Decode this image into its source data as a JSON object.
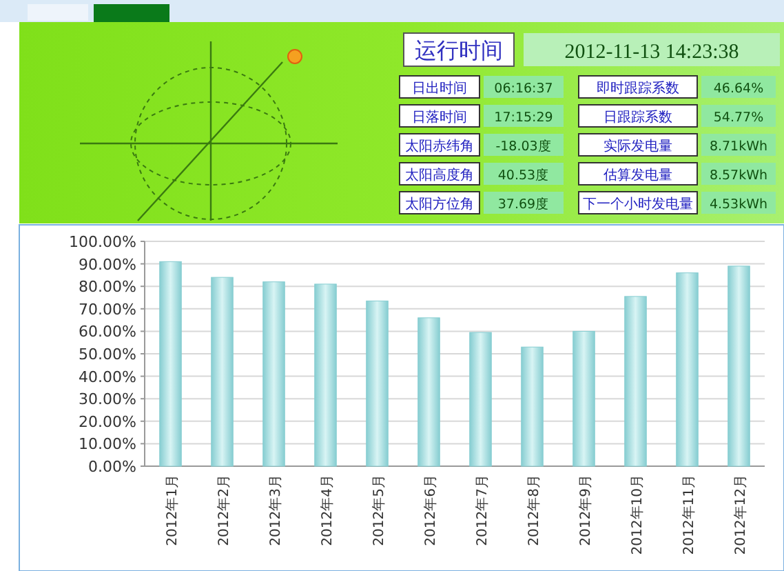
{
  "chart_data": {
    "type": "bar",
    "categories": [
      "2012年1月",
      "2012年2月",
      "2012年3月",
      "2012年4月",
      "2012年5月",
      "2012年6月",
      "2012年7月",
      "2012年8月",
      "2012年9月",
      "2012年10月",
      "2012年11月",
      "2012年12月"
    ],
    "values": [
      91,
      84,
      82,
      81,
      73.5,
      66,
      59.5,
      53,
      60,
      75.5,
      86,
      89
    ],
    "color": "#86cdd1",
    "ylim": [
      0,
      100
    ],
    "yticks": [
      {
        "value": 0,
        "label": "0.00%"
      },
      {
        "value": 10,
        "label": "10.00%"
      },
      {
        "value": 20,
        "label": "20.00%"
      },
      {
        "value": 30,
        "label": "30.00%"
      },
      {
        "value": 40,
        "label": "40.00%"
      },
      {
        "value": 50,
        "label": "50.00%"
      },
      {
        "value": 60,
        "label": "60.00%"
      },
      {
        "value": 70,
        "label": "70.00%"
      },
      {
        "value": 80,
        "label": "80.00%"
      },
      {
        "value": 90,
        "label": "90.00%"
      },
      {
        "value": 100,
        "label": "100.00%"
      }
    ],
    "grid": "y",
    "annotations": [
      "运行时间",
      "2012-11-13 14:23:38",
      "日出时间",
      "06:16:37",
      "即时跟踪系数",
      "46.64%",
      "日落时间",
      "17:15:29",
      "日跟踪系数",
      "54.77%",
      "太阳赤纬角",
      "-18.03度",
      "实际发电量",
      "8.71kWh",
      "太阳高度角",
      "40.53度",
      "估算发电量",
      "8.57kWh",
      "太阳方位角",
      "37.69度",
      "下一个小时发电量",
      "4.53kWh"
    ]
  }
}
